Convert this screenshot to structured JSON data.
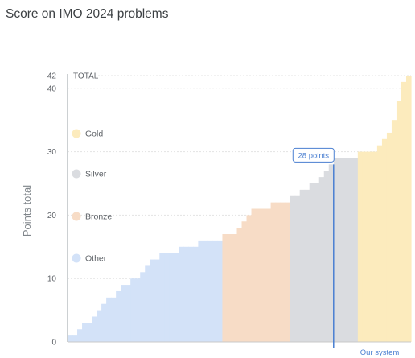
{
  "title": "Score on IMO 2024 problems",
  "colors": {
    "Other": "#d3e2f8",
    "Bronze": "#f7dcc6",
    "Silver": "#dadce0",
    "Gold": "#fcebbd",
    "marker": "#4a7fd1"
  },
  "chart_data": {
    "type": "bar",
    "ylabel": "Points total",
    "ylim": [
      0,
      42
    ],
    "yticks": [
      "0",
      "10",
      "20",
      "30",
      "40",
      "42"
    ],
    "ytick_values": [
      0,
      10,
      20,
      30,
      40,
      42
    ],
    "top_label": "TOTAL",
    "grid": true,
    "legend": [
      "Gold",
      "Silver",
      "Bronze",
      "Other"
    ],
    "legend_placement": "left",
    "series": [
      {
        "name": "Other",
        "values": [
          1,
          1,
          2,
          3,
          3,
          4,
          5,
          6,
          7,
          7,
          8,
          9,
          9,
          10,
          10,
          11,
          12,
          13,
          13,
          14,
          14,
          14,
          14,
          15,
          15,
          15,
          15,
          16,
          16,
          16,
          16,
          16
        ]
      },
      {
        "name": "Bronze",
        "values": [
          17,
          17,
          17,
          18,
          19,
          20,
          21,
          21,
          21,
          21,
          22,
          22,
          22,
          22
        ]
      },
      {
        "name": "Silver",
        "values": [
          23,
          23,
          24,
          24,
          25,
          25,
          26,
          27,
          28,
          29,
          29,
          29,
          29,
          29
        ]
      },
      {
        "name": "Gold",
        "values": [
          30,
          30,
          30,
          30,
          31,
          32,
          33,
          35,
          38,
          41,
          42
        ]
      }
    ],
    "highlight": {
      "label": "Our system",
      "value": 28,
      "annotation": "28 points"
    }
  }
}
